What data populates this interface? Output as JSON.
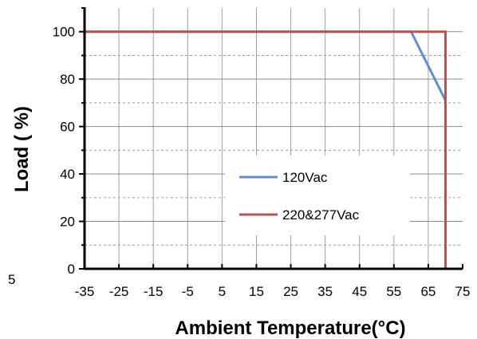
{
  "chart_data": {
    "type": "line",
    "xlabel": "Ambient Temperature(°C)",
    "ylabel": "Load ( %)",
    "xlim": [
      -35,
      75
    ],
    "ylim": [
      0,
      110
    ],
    "x_ticks": [
      "-35",
      "-25",
      "-15",
      "-5",
      "5",
      "15",
      "25",
      "35",
      "45",
      "55",
      "65",
      "75"
    ],
    "y_ticks": [
      "0",
      "20",
      "40",
      "60",
      "80",
      "100"
    ],
    "grid": true,
    "legend_position": "bottom-right",
    "series": [
      {
        "name": "120Vac",
        "color": "#5b8fd6",
        "points": [
          [
            -35,
            100
          ],
          [
            60,
            100
          ],
          [
            70,
            71
          ],
          [
            70,
            0
          ]
        ]
      },
      {
        "name": "220&277Vac",
        "color": "#c0504d",
        "points": [
          [
            -35,
            100
          ],
          [
            70,
            100
          ],
          [
            70,
            0
          ]
        ]
      }
    ]
  },
  "edge_mark": "5"
}
